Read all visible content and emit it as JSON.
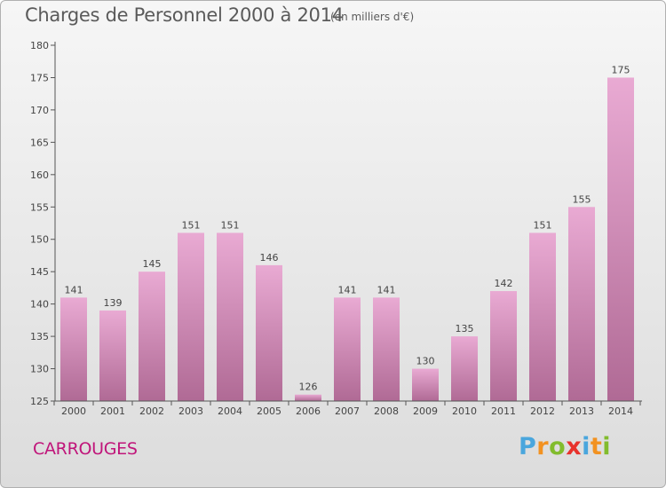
{
  "header": {
    "title": "Charges de Personnel 2000 à 2014",
    "subtitle": "(en milliers d'€)"
  },
  "footer": {
    "town": "CARROUGES",
    "logo_letters": [
      "P",
      "r",
      "o",
      "x",
      "i",
      "t",
      "i"
    ],
    "logo_colors": [
      "#4aa6dd",
      "#f29221",
      "#82bc2d",
      "#e8322c",
      "#4aa6dd",
      "#f29221",
      "#82bc2d"
    ]
  },
  "colors": {
    "bar_top": "#e9aad3",
    "bar_bottom": "#b06a95",
    "axis": "#555555",
    "grid": "#cfcfcf"
  },
  "chart_data": {
    "type": "bar",
    "title": "Charges de Personnel 2000 à 2014",
    "subtitle": "(en milliers d'€)",
    "categories": [
      "2000",
      "2001",
      "2002",
      "2003",
      "2004",
      "2005",
      "2006",
      "2007",
      "2008",
      "2009",
      "2010",
      "2011",
      "2012",
      "2013",
      "2014"
    ],
    "values": [
      141,
      139,
      145,
      151,
      151,
      146,
      126,
      141,
      141,
      130,
      135,
      142,
      151,
      155,
      175
    ],
    "ylim": [
      125,
      180
    ],
    "yticks": [
      125,
      130,
      135,
      140,
      145,
      150,
      155,
      160,
      165,
      170,
      175,
      180
    ],
    "xlabel": "",
    "ylabel": "",
    "grid": false,
    "data_labels": true
  }
}
